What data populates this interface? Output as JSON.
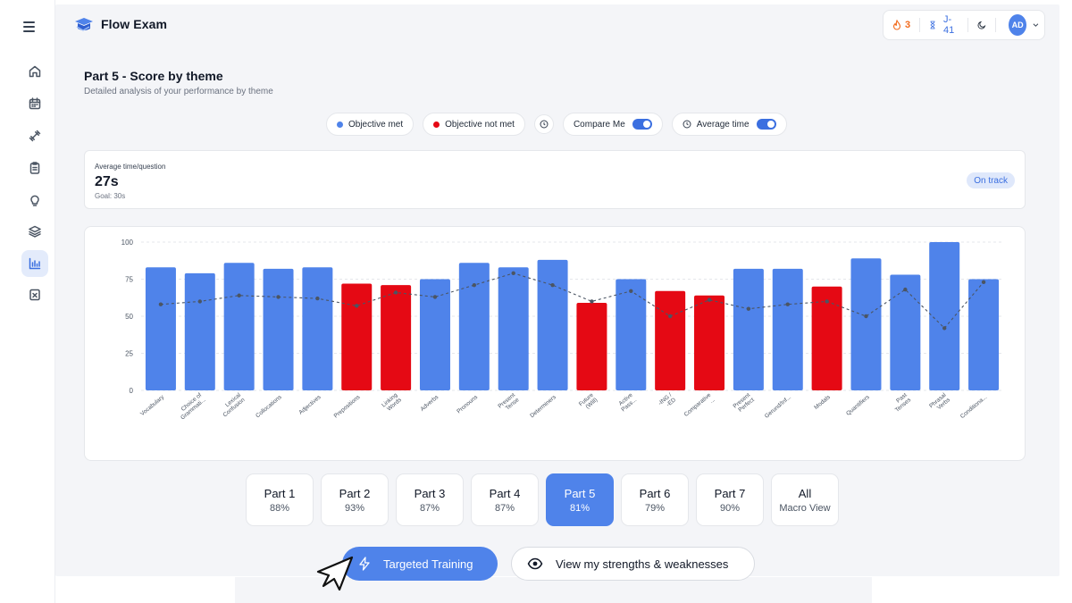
{
  "app": {
    "brand": "Flow Exam"
  },
  "header": {
    "streak": "3",
    "countdown": "J-41",
    "avatar": "AD"
  },
  "page": {
    "title": "Part 5 - Score by theme",
    "subtitle": "Detailed analysis of your performance by theme"
  },
  "filters": {
    "objective_met": "Objective met",
    "objective_not_met": "Objective not met",
    "compare_me": "Compare Me",
    "average_time": "Average time"
  },
  "stat": {
    "label": "Average time/question",
    "value": "27s",
    "goal": "Goal: 30s",
    "badge": "On track"
  },
  "colors": {
    "met": "#4f83ea",
    "not_met": "#e50914",
    "accent": "#3b6fe0",
    "streak": "#f26b1d"
  },
  "chart_data": {
    "type": "bar",
    "categories": [
      "Vocabulary",
      "Choice of Grammati...",
      "Lexical Confusion",
      "Collocations",
      "Adjectives",
      "Prepositions",
      "Linking Words",
      "Adverbs",
      "Pronouns",
      "Present Tense",
      "Determiners",
      "Future (Will)",
      "Active Pass...",
      "-ING / -ED",
      "Comparative ...",
      "Present Perfect",
      "Gerund/Inf...",
      "Modals",
      "Quantifiers",
      "Past Tenses",
      "Phrasal Verbs",
      "Conditiona..."
    ],
    "series": [
      {
        "values": [
          83,
          79,
          86,
          82,
          83,
          72,
          71,
          75,
          86,
          83,
          88,
          59,
          75,
          67,
          64,
          82,
          82,
          70,
          89,
          78,
          100,
          75
        ],
        "status": [
          "met",
          "met",
          "met",
          "met",
          "met",
          "not_met",
          "not_met",
          "met",
          "met",
          "met",
          "met",
          "not_met",
          "met",
          "not_met",
          "not_met",
          "met",
          "met",
          "not_met",
          "met",
          "met",
          "met",
          "met"
        ]
      },
      {
        "style": "dashed-line",
        "values": [
          58,
          60,
          64,
          63,
          62,
          57,
          66,
          63,
          71,
          79,
          71,
          60,
          67,
          50,
          61,
          55,
          58,
          60,
          50,
          68,
          42,
          73
        ]
      }
    ],
    "yticks": [
      0,
      25,
      50,
      75,
      100
    ],
    "ylim": [
      0,
      100
    ],
    "grid": true
  },
  "parts": [
    {
      "name": "Part 1",
      "value": "88%"
    },
    {
      "name": "Part 2",
      "value": "93%"
    },
    {
      "name": "Part 3",
      "value": "87%"
    },
    {
      "name": "Part 4",
      "value": "87%"
    },
    {
      "name": "Part 5",
      "value": "81%"
    },
    {
      "name": "Part 6",
      "value": "79%"
    },
    {
      "name": "Part 7",
      "value": "90%"
    },
    {
      "name": "All",
      "value": "Macro View"
    }
  ],
  "actions": {
    "targeted_training": "Targeted Training",
    "strengths": "View my strengths & weaknesses"
  }
}
